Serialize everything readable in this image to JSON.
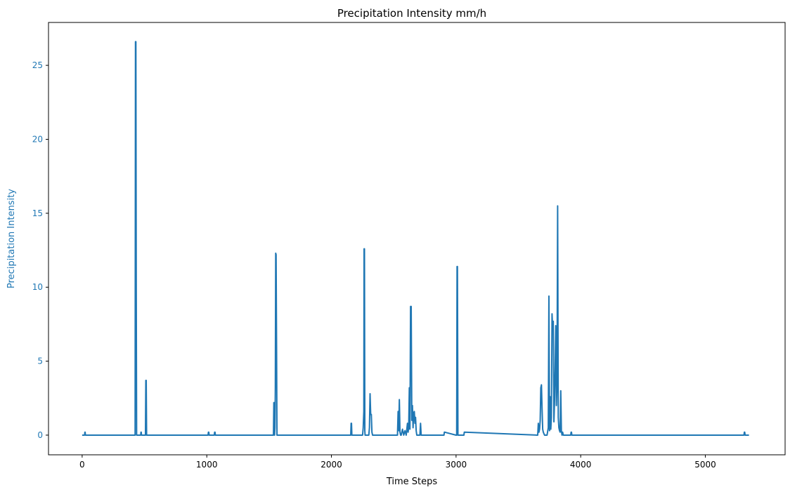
{
  "chart_data": {
    "type": "line",
    "title": "Precipitation Intensity mm/h",
    "xlabel": "Time Steps",
    "ylabel": "Precipitation Intensity",
    "xlim": [
      -270,
      5640
    ],
    "ylim": [
      -1.33,
      27.9
    ],
    "xticks": [
      0,
      1000,
      2000,
      3000,
      4000,
      5000
    ],
    "yticks": [
      0,
      5,
      10,
      15,
      20,
      25
    ],
    "grid": false,
    "colors": {
      "series": "#1f77b4",
      "ylabel": "#1f77b4",
      "ytick_labels": "#1f77b4",
      "text": "#000000"
    },
    "series": [
      {
        "x": [
          0,
          20,
          22,
          24,
          26,
          30,
          425,
          428,
          431,
          434,
          437,
          440,
          470,
          472,
          474,
          476,
          508,
          511,
          514,
          517,
          520,
          1010,
          1013,
          1016,
          1019,
          1060,
          1063,
          1066,
          1069,
          1535,
          1538,
          1541,
          1544,
          1547,
          1550,
          1553,
          1556,
          1560,
          1563,
          1566,
          1570,
          2155,
          2158,
          2161,
          2164,
          2250,
          2255,
          2260,
          2262,
          2265,
          2268,
          2270,
          2275,
          2300,
          2305,
          2310,
          2315,
          2320,
          2325,
          2330,
          2335,
          2340,
          2530,
          2535,
          2540,
          2545,
          2550,
          2555,
          2560,
          2570,
          2580,
          2590,
          2600,
          2610,
          2615,
          2620,
          2625,
          2630,
          2635,
          2640,
          2645,
          2650,
          2655,
          2660,
          2665,
          2670,
          2675,
          2680,
          2685,
          2690,
          2700,
          2710,
          2715,
          2720,
          2900,
          2903,
          2906,
          2909,
          3000,
          3005,
          3008,
          3011,
          3015,
          3060,
          3063,
          3066,
          3069,
          3650,
          3655,
          3660,
          3665,
          3670,
          3675,
          3680,
          3685,
          3690,
          3695,
          3700,
          3710,
          3720,
          3730,
          3740,
          3745,
          3750,
          3755,
          3760,
          3765,
          3770,
          3775,
          3780,
          3785,
          3790,
          3795,
          3800,
          3805,
          3810,
          3815,
          3820,
          3825,
          3830,
          3835,
          3840,
          3845,
          3850,
          3855,
          3860,
          3865,
          3870,
          3920,
          3923,
          3926,
          3929,
          5310,
          5313,
          5316,
          5319,
          5350
        ],
        "values": [
          0,
          0,
          0.2,
          0.2,
          0,
          0,
          0,
          26.6,
          26.6,
          10,
          0,
          0,
          0,
          0.2,
          0.2,
          0,
          0,
          3.7,
          3.7,
          0,
          0,
          0,
          0.2,
          0.2,
          0,
          0,
          0.2,
          0.2,
          0,
          0,
          2.2,
          2.2,
          0,
          0.5,
          3.2,
          12.3,
          12.2,
          5.7,
          0,
          0,
          0,
          0,
          0.8,
          0.8,
          0,
          0,
          0.5,
          1.6,
          12.6,
          12.6,
          0.3,
          0,
          0,
          0,
          0.5,
          2.8,
          1.4,
          1.4,
          0.2,
          0,
          0,
          0,
          0,
          1.6,
          0.3,
          2.4,
          0.2,
          0,
          0,
          0.4,
          0,
          0.3,
          0,
          0.8,
          0.2,
          0.5,
          3.2,
          0.4,
          8.7,
          8.7,
          1,
          2,
          0.5,
          1.5,
          1.6,
          0.8,
          1.2,
          0.3,
          0,
          0,
          0,
          0,
          0.8,
          0,
          0,
          0,
          0.2,
          0.2,
          0,
          0,
          11.4,
          11.4,
          0,
          0,
          0,
          0.2,
          0.2,
          0,
          0,
          0.8,
          0.2,
          0.4,
          1,
          3.2,
          3.4,
          1.8,
          0.4,
          0.2,
          0,
          0,
          0,
          0.5,
          9.4,
          0.3,
          2.6,
          0.4,
          1.2,
          8.2,
          7.2,
          7.7,
          0.9,
          2.3,
          4.5,
          7.4,
          2,
          3.5,
          15.5,
          1.2,
          0.5,
          0.3,
          0.2,
          3,
          0.3,
          0,
          0.2,
          0,
          0,
          0,
          0,
          0.2,
          0.2,
          0,
          0,
          0.2,
          0.2,
          0,
          0
        ]
      }
    ]
  }
}
